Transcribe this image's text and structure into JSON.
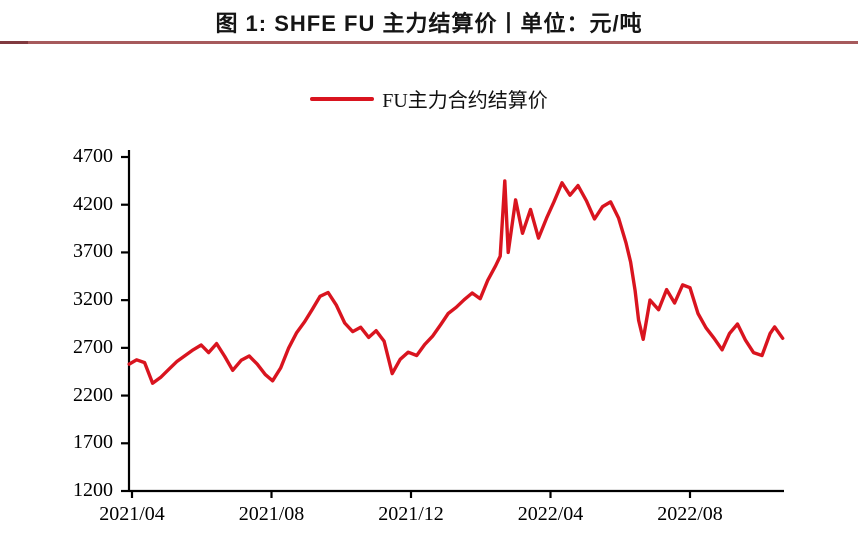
{
  "title": "图 1: SHFE FU 主力结算价丨单位：元/吨",
  "legend": {
    "label": "FU主力合约结算价"
  },
  "colors": {
    "line": "#d9141f",
    "title_rule": "#a65a5c",
    "axis": "#000000",
    "text": "#000000",
    "background": "#ffffff"
  },
  "chart_data": {
    "type": "line",
    "title": "图 1: SHFE FU 主力结算价丨单位：元/吨",
    "unit": "元/吨",
    "xlabel": "",
    "ylabel": "",
    "grid": false,
    "legend_position": "top-center",
    "ylim": [
      1200,
      4700
    ],
    "y_ticks": [
      1200,
      1700,
      2200,
      2700,
      3200,
      3700,
      4200,
      4700
    ],
    "x_ticks": [
      {
        "label": "2021/04",
        "date": "2021-04-01"
      },
      {
        "label": "2021/08",
        "date": "2021-08-01"
      },
      {
        "label": "2021/12",
        "date": "2021-12-01"
      },
      {
        "label": "2022/04",
        "date": "2022-04-01"
      },
      {
        "label": "2022/08",
        "date": "2022-08-01"
      }
    ],
    "xlim": [
      "2021-03-27",
      "2022-10-24"
    ],
    "series": [
      {
        "name": "FU主力合约结算价",
        "color": "#d9141f",
        "points": [
          [
            "2021-03-29",
            2530
          ],
          [
            "2021-04-05",
            2575
          ],
          [
            "2021-04-12",
            2545
          ],
          [
            "2021-04-19",
            2330
          ],
          [
            "2021-04-26",
            2390
          ],
          [
            "2021-05-03",
            2480
          ],
          [
            "2021-05-10",
            2560
          ],
          [
            "2021-05-17",
            2620
          ],
          [
            "2021-05-24",
            2680
          ],
          [
            "2021-05-31",
            2730
          ],
          [
            "2021-06-07",
            2650
          ],
          [
            "2021-06-14",
            2745
          ],
          [
            "2021-06-21",
            2610
          ],
          [
            "2021-06-28",
            2465
          ],
          [
            "2021-07-05",
            2570
          ],
          [
            "2021-07-12",
            2615
          ],
          [
            "2021-07-19",
            2530
          ],
          [
            "2021-07-26",
            2420
          ],
          [
            "2021-08-02",
            2355
          ],
          [
            "2021-08-09",
            2490
          ],
          [
            "2021-08-16",
            2700
          ],
          [
            "2021-08-23",
            2860
          ],
          [
            "2021-08-30",
            2975
          ],
          [
            "2021-09-06",
            3100
          ],
          [
            "2021-09-13",
            3240
          ],
          [
            "2021-09-20",
            3280
          ],
          [
            "2021-09-27",
            3150
          ],
          [
            "2021-10-04",
            2960
          ],
          [
            "2021-10-11",
            2870
          ],
          [
            "2021-10-18",
            2915
          ],
          [
            "2021-10-25",
            2810
          ],
          [
            "2021-11-01",
            2880
          ],
          [
            "2021-11-08",
            2770
          ],
          [
            "2021-11-15",
            2430
          ],
          [
            "2021-11-22",
            2580
          ],
          [
            "2021-11-29",
            2655
          ],
          [
            "2021-12-06",
            2620
          ],
          [
            "2021-12-13",
            2735
          ],
          [
            "2021-12-20",
            2825
          ],
          [
            "2021-12-27",
            2945
          ],
          [
            "2022-01-03",
            3060
          ],
          [
            "2022-01-10",
            3125
          ],
          [
            "2022-01-17",
            3205
          ],
          [
            "2022-01-24",
            3275
          ],
          [
            "2022-01-31",
            3215
          ],
          [
            "2022-02-07",
            3405
          ],
          [
            "2022-02-14",
            3560
          ],
          [
            "2022-02-18",
            3660
          ],
          [
            "2022-02-22",
            4450
          ],
          [
            "2022-02-25",
            3700
          ],
          [
            "2022-03-01",
            4250
          ],
          [
            "2022-03-07",
            3900
          ],
          [
            "2022-03-14",
            4150
          ],
          [
            "2022-03-21",
            3850
          ],
          [
            "2022-03-28",
            4060
          ],
          [
            "2022-04-04",
            4230
          ],
          [
            "2022-04-11",
            4430
          ],
          [
            "2022-04-18",
            4300
          ],
          [
            "2022-04-25",
            4400
          ],
          [
            "2022-05-02",
            4240
          ],
          [
            "2022-05-09",
            4050
          ],
          [
            "2022-05-16",
            4180
          ],
          [
            "2022-05-23",
            4230
          ],
          [
            "2022-05-30",
            4060
          ],
          [
            "2022-06-06",
            3800
          ],
          [
            "2022-06-10",
            3600
          ],
          [
            "2022-06-14",
            3300
          ],
          [
            "2022-06-17",
            2990
          ],
          [
            "2022-06-21",
            2790
          ],
          [
            "2022-06-27",
            3200
          ],
          [
            "2022-07-04",
            3100
          ],
          [
            "2022-07-11",
            3310
          ],
          [
            "2022-07-18",
            3170
          ],
          [
            "2022-07-25",
            3360
          ],
          [
            "2022-08-01",
            3330
          ],
          [
            "2022-08-08",
            3060
          ],
          [
            "2022-08-15",
            2910
          ],
          [
            "2022-08-22",
            2800
          ],
          [
            "2022-08-29",
            2680
          ],
          [
            "2022-09-05",
            2850
          ],
          [
            "2022-09-12",
            2950
          ],
          [
            "2022-09-19",
            2780
          ],
          [
            "2022-09-26",
            2650
          ],
          [
            "2022-10-03",
            2620
          ],
          [
            "2022-10-10",
            2850
          ],
          [
            "2022-10-14",
            2920
          ],
          [
            "2022-10-21",
            2800
          ]
        ]
      }
    ]
  }
}
